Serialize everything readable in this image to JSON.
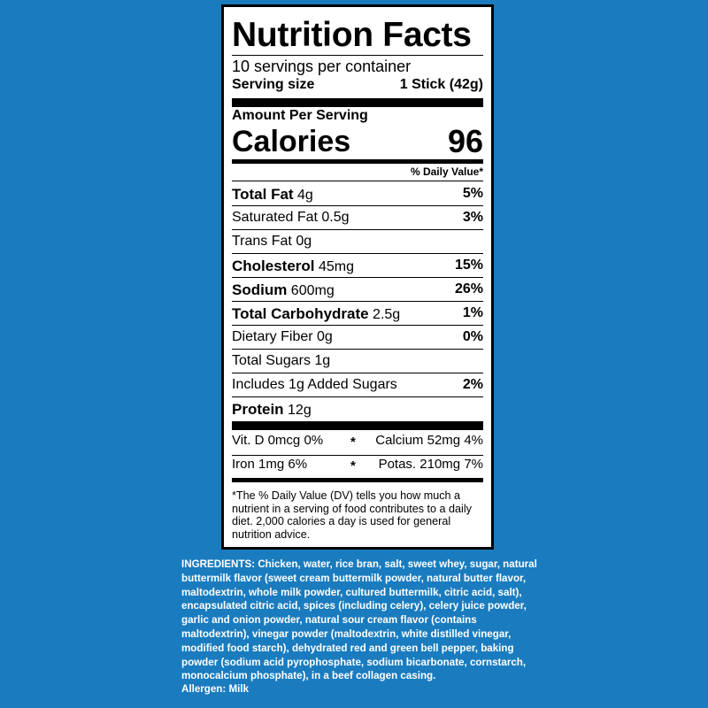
{
  "label": {
    "title": "Nutrition Facts",
    "servings": "10 servings per container",
    "serving_size": {
      "label": "Serving size",
      "value": "1 Stick (42g)"
    },
    "amount_per_serving": "Amount Per Serving",
    "calories": {
      "label": "Calories",
      "value": "96"
    },
    "dv_header": "% Daily Value*",
    "nutrients": [
      {
        "name": "Total Fat",
        "amount": "4g",
        "dv": "5%"
      },
      {
        "name": "Saturated Fat",
        "amount": "0.5g",
        "dv": "3%"
      },
      {
        "name": "Trans Fat",
        "amount": "0g"
      },
      {
        "name": "Cholesterol",
        "amount": "45mg",
        "dv": "15%"
      },
      {
        "name": "Sodium",
        "amount": "600mg",
        "dv": "26%"
      },
      {
        "name": "Total Carbohydrate",
        "amount": "2.5g",
        "dv": "1%"
      },
      {
        "name": "Dietary Fiber",
        "amount": "0g",
        "dv": "0%"
      },
      {
        "name": "Total Sugars",
        "amount": "1g"
      },
      {
        "name": "Includes 1g Added Sugars",
        "dv": "2%"
      },
      {
        "name": "Protein",
        "amount": "12g"
      }
    ],
    "vitamin_rows": [
      [
        {
          "name": "Vit. D",
          "amount": "0mcg",
          "dv": "0%"
        },
        {
          "name": "Calcium",
          "amount": "52mg",
          "dv": "4%"
        }
      ],
      [
        {
          "name": "Iron",
          "amount": "1mg",
          "dv": "6%"
        },
        {
          "name": "Potas.",
          "amount": "210mg",
          "dv": "7%"
        }
      ]
    ],
    "separator": "*",
    "footnote": "*The % Daily Value (DV) tells you how much a nutrient in a serving of food contributes to a daily diet. 2,000 calories a day is used for general nutrition advice."
  },
  "ingredients": "INGREDIENTS: Chicken, water, rice bran, salt, sweet whey, sugar, natural buttermilk flavor (sweet cream buttermilk powder, natural butter flavor, maltodextrin, whole milk powder, cultured buttermilk, citric acid, salt), encapsulated citric acid, spices (including celery), celery juice powder, garlic and onion powder, natural sour cream flavor (contains maltodextrin), vinegar powder (maltodextrin, white distilled vinegar, modified food starch), dehydrated red and green bell pepper, baking powder (sodium acid pyrophosphate, sodium bicarbonate, cornstarch, monocalcium phosphate), in a beef collagen casing.",
  "allergen": "Allergen: Milk"
}
